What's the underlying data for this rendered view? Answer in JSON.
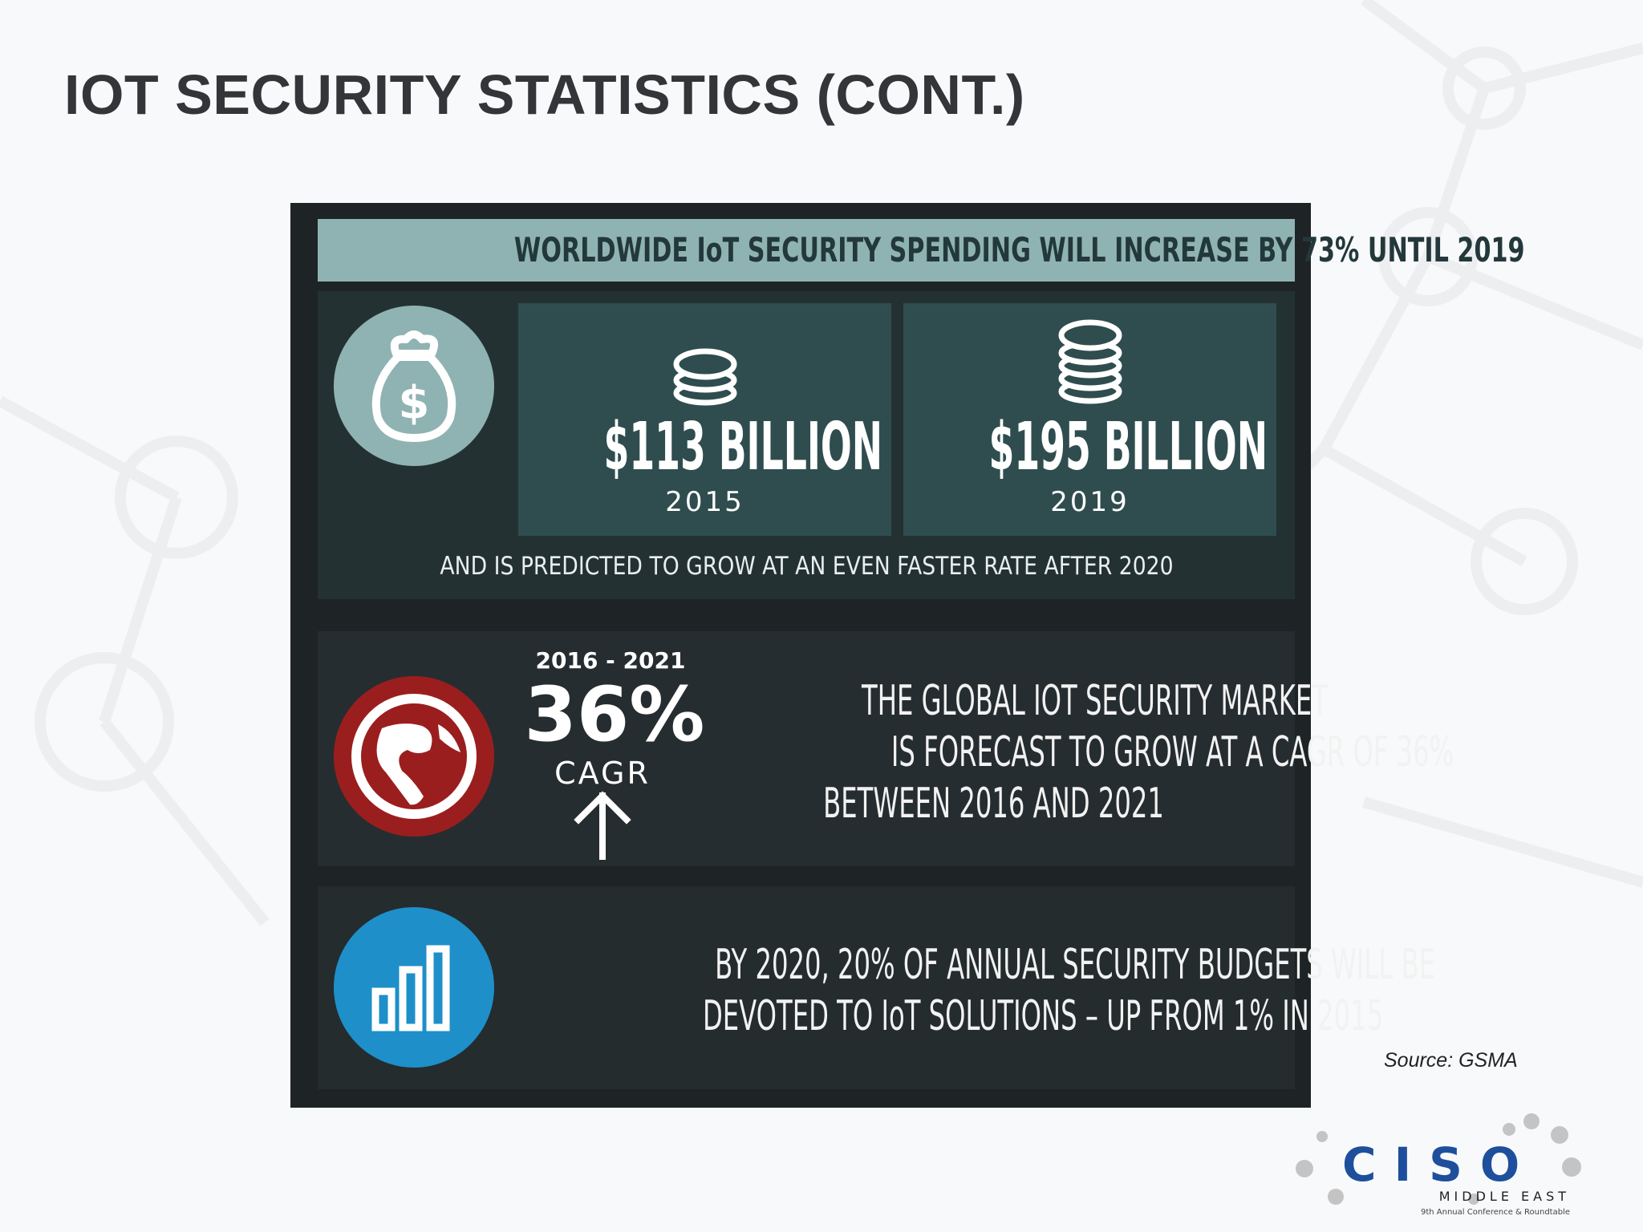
{
  "slide": {
    "title": "IOT SECURITY STATISTICS (CONT.)"
  },
  "infographic": {
    "banner": "WORLDWIDE IoT SECURITY SPENDING WILL INCREASE BY 73% UNTIL 2019",
    "spend_2015": {
      "amount": "$113 BILLION",
      "year": "2015"
    },
    "spend_2019": {
      "amount": "$195 BILLION",
      "year": "2019"
    },
    "prediction": "AND IS PREDICTED TO GROW AT AN EVEN FASTER RATE AFTER 2020",
    "cagr": {
      "range": "2016 - 2021",
      "percent": "36%",
      "label": "CAGR",
      "text_lines": [
        "THE GLOBAL IOT SECURITY MARKET",
        "IS FORECAST TO GROW AT A CAGR OF 36%",
        "BETWEEN 2016 AND 2021"
      ]
    },
    "budget": {
      "text_lines": [
        "BY 2020, 20% OF ANNUAL SECURITY BUDGETS WILL BE",
        "DEVOTED TO IoT SOLUTIONS – UP FROM 1% IN 2015"
      ]
    },
    "icons": [
      "money-bag-icon",
      "coins-icon",
      "globe-icon",
      "arrow-up-icon",
      "bar-chart-icon"
    ],
    "colors": {
      "banner": "#8fb3b2",
      "globe_circle": "#9b1e1e",
      "bars_circle": "#1e8fc9",
      "panel": "#243133"
    }
  },
  "source": "Source: GSMA",
  "logo": {
    "word": "CISO",
    "subtitle": "MIDDLE EAST",
    "tagline": "9th Annual Conference & Roundtable"
  }
}
